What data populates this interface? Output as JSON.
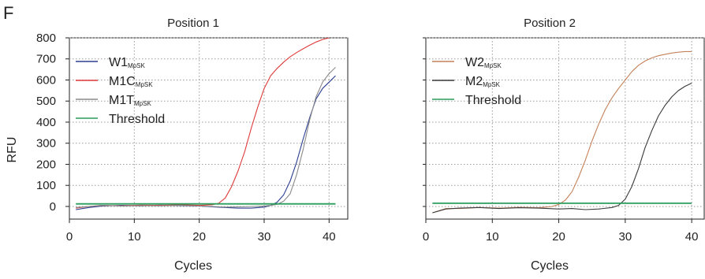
{
  "figure": {
    "panel_letter": "F"
  },
  "chart_data": [
    {
      "type": "line",
      "title": "Position 1",
      "xlabel": "Cycles",
      "ylabel": "RFU",
      "xlim": [
        0,
        43
      ],
      "ylim": [
        -60,
        800
      ],
      "xticks": [
        0,
        10,
        20,
        30,
        40
      ],
      "yticks": [
        0,
        100,
        200,
        300,
        400,
        500,
        600,
        700,
        800
      ],
      "grid": true,
      "legend_position": "top-left",
      "series": [
        {
          "name": "W1",
          "name_sub": "MpSK",
          "color": "#2b3f8f",
          "x": [
            1,
            3,
            5,
            8,
            11,
            14,
            17,
            20,
            22,
            24,
            26,
            28,
            30,
            31,
            32,
            33,
            34,
            35,
            36,
            37,
            38,
            39,
            40,
            41
          ],
          "y": [
            -15,
            -5,
            2,
            5,
            3,
            6,
            4,
            2,
            -2,
            -5,
            -8,
            -8,
            -3,
            5,
            20,
            55,
            120,
            210,
            320,
            420,
            510,
            560,
            590,
            620
          ]
        },
        {
          "name": "M1C",
          "name_sub": "MpSK",
          "color": "#e03a3a",
          "x": [
            1,
            3,
            5,
            8,
            11,
            14,
            17,
            20,
            22,
            23,
            24,
            25,
            26,
            27,
            28,
            29,
            30,
            31,
            32,
            33,
            34,
            35,
            36,
            37,
            38,
            39,
            40
          ],
          "y": [
            -8,
            0,
            5,
            3,
            6,
            5,
            8,
            5,
            8,
            15,
            40,
            95,
            170,
            260,
            370,
            470,
            560,
            620,
            655,
            685,
            710,
            730,
            748,
            765,
            780,
            792,
            800
          ]
        },
        {
          "name": "M1T",
          "name_sub": "MpSK",
          "color": "#8a8a8a",
          "x": [
            1,
            3,
            5,
            8,
            11,
            14,
            17,
            20,
            22,
            24,
            26,
            28,
            30,
            31,
            32,
            33,
            34,
            35,
            36,
            37,
            38,
            39,
            40,
            41
          ],
          "y": [
            -5,
            0,
            5,
            2,
            4,
            3,
            5,
            2,
            0,
            -3,
            -2,
            0,
            2,
            5,
            10,
            25,
            60,
            150,
            270,
            410,
            520,
            590,
            630,
            660
          ]
        },
        {
          "name": "Threshold",
          "color": "#2a9d5c",
          "x": [
            1,
            41
          ],
          "y": [
            12,
            12
          ]
        }
      ]
    },
    {
      "type": "line",
      "title": "Position 2",
      "xlabel": "Cycles",
      "ylabel": "",
      "xlim": [
        0,
        42
      ],
      "ylim": [
        -60,
        800
      ],
      "xticks": [
        0,
        10,
        20,
        30,
        40
      ],
      "yticks": [],
      "grid": true,
      "legend_position": "top-left",
      "series": [
        {
          "name": "W2",
          "name_sub": "MpSK",
          "color": "#c4825a",
          "x": [
            1,
            3,
            5,
            8,
            11,
            14,
            17,
            19,
            20,
            21,
            22,
            23,
            24,
            25,
            26,
            27,
            28,
            29,
            30,
            31,
            32,
            33,
            34,
            35,
            36,
            37,
            38,
            39,
            40
          ],
          "y": [
            -30,
            -10,
            -10,
            -5,
            -8,
            -4,
            -6,
            0,
            10,
            30,
            70,
            140,
            220,
            310,
            390,
            460,
            515,
            560,
            600,
            640,
            670,
            690,
            705,
            715,
            722,
            728,
            732,
            735,
            735
          ]
        },
        {
          "name": "M2",
          "name_sub": "MpSK",
          "color": "#3a3a3a",
          "x": [
            1,
            3,
            5,
            8,
            11,
            14,
            17,
            20,
            22,
            24,
            26,
            28,
            29,
            30,
            31,
            32,
            33,
            34,
            35,
            36,
            37,
            38,
            39,
            40
          ],
          "y": [
            -30,
            -12,
            -8,
            -5,
            -10,
            -6,
            -8,
            -12,
            -10,
            -15,
            -12,
            -5,
            5,
            35,
            95,
            180,
            280,
            360,
            430,
            480,
            520,
            550,
            570,
            585
          ]
        },
        {
          "name": "Threshold",
          "color": "#2a9d5c",
          "x": [
            1,
            40
          ],
          "y": [
            15,
            15
          ]
        }
      ]
    }
  ]
}
